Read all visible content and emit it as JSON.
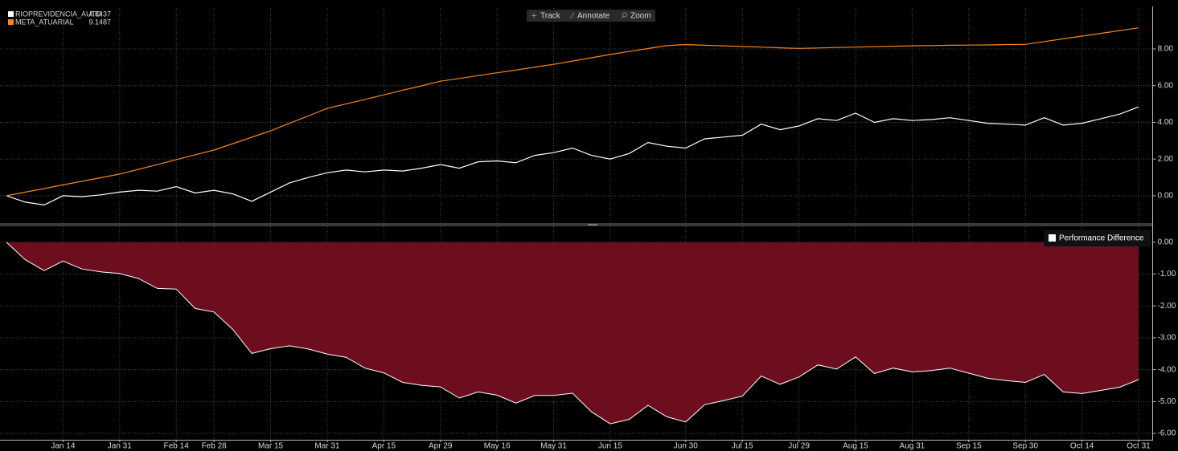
{
  "toolbar": [
    "Track",
    "Annotate",
    "Zoom"
  ],
  "chart_data": [
    {
      "type": "line",
      "ylim": [
        -1.49,
        10.23
      ],
      "yticks": [
        {
          "value": 0,
          "label": "0.00"
        },
        {
          "value": 2,
          "label": "2.00"
        },
        {
          "value": 4,
          "label": "4.00"
        },
        {
          "value": 6,
          "label": "6.00"
        },
        {
          "value": 8,
          "label": "8.00"
        }
      ],
      "grid": true,
      "legend": "top-left",
      "series": [
        {
          "name": "RIOPREVIDENCIA_AUTO",
          "color": "#ffffff",
          "values": [
            0,
            -0.35,
            -0.5,
            0.0,
            -0.05,
            0.05,
            0.2,
            0.3,
            0.25,
            0.5,
            0.15,
            0.3,
            0.1,
            -0.3,
            0.2,
            0.7,
            1.0,
            1.25,
            1.4,
            1.3,
            1.4,
            1.35,
            1.5,
            1.7,
            1.5,
            1.85,
            1.9,
            1.8,
            2.2,
            2.35,
            2.6,
            2.2,
            2.0,
            2.3,
            2.9,
            2.7,
            2.6,
            3.1,
            3.2,
            3.3,
            3.9,
            3.6,
            3.8,
            4.2,
            4.1,
            4.5,
            4.0,
            4.2,
            4.1,
            4.15,
            4.25,
            4.1,
            3.95,
            3.9,
            3.85,
            4.25,
            3.85,
            3.95,
            4.2,
            4.45,
            4.8437
          ]
        },
        {
          "name": "META_ATUARIAL",
          "color": "#f7861c",
          "values": [
            0,
            0.2,
            0.39,
            0.59,
            0.79,
            0.98,
            1.18,
            1.44,
            1.7,
            1.97,
            2.23,
            2.49,
            2.84,
            3.19,
            3.54,
            3.95,
            4.35,
            4.76,
            5.01,
            5.25,
            5.5,
            5.75,
            5.99,
            6.24,
            6.39,
            6.55,
            6.7,
            6.85,
            7.01,
            7.16,
            7.34,
            7.52,
            7.7,
            7.86,
            8.02,
            8.18,
            8.24,
            8.2,
            8.17,
            8.13,
            8.1,
            8.06,
            8.03,
            8.05,
            8.08,
            8.1,
            8.12,
            8.15,
            8.17,
            8.18,
            8.2,
            8.21,
            8.22,
            8.24,
            8.25,
            8.4,
            8.55,
            8.7,
            8.85,
            9.0,
            9.1487
          ]
        }
      ]
    },
    {
      "type": "area",
      "categories": [
        null,
        null,
        null,
        "Jan 14",
        null,
        null,
        "Jan 31",
        null,
        null,
        "Feb 14",
        null,
        "Feb 28",
        null,
        null,
        "Mar 15",
        null,
        null,
        "Mar 31",
        null,
        null,
        "Apr 15",
        null,
        null,
        "Apr 29",
        null,
        null,
        "May 16",
        null,
        null,
        "May 31",
        null,
        null,
        "Jun 15",
        null,
        null,
        null,
        "Jun 30",
        null,
        null,
        "Jul 15",
        null,
        null,
        "Jul 29",
        null,
        null,
        "Aug 15",
        null,
        null,
        "Aug 31",
        null,
        null,
        "Sep 15",
        null,
        null,
        "Sep 30",
        null,
        null,
        "Oct 14",
        null,
        null,
        "Oct 31"
      ],
      "ylim": [
        -6.2,
        0.5
      ],
      "yticks": [
        {
          "value": 0,
          "label": "0.00"
        },
        {
          "value": -1,
          "label": "-1.00"
        },
        {
          "value": -2,
          "label": "-2.00"
        },
        {
          "value": -3,
          "label": "-3.00"
        },
        {
          "value": -4,
          "label": "-4.00"
        },
        {
          "value": -5,
          "label": "-5.00"
        },
        {
          "value": -6,
          "label": "-6.00"
        }
      ],
      "grid": true,
      "legend": "top-right",
      "series": [
        {
          "name": "Performance Difference",
          "color": "#6d0e1f",
          "values": [
            0,
            -0.55,
            -0.89,
            -0.59,
            -0.84,
            -0.93,
            -0.98,
            -1.14,
            -1.45,
            -1.47,
            -2.08,
            -2.19,
            -2.74,
            -3.49,
            -3.34,
            -3.25,
            -3.35,
            -3.51,
            -3.61,
            -3.95,
            -4.1,
            -4.4,
            -4.49,
            -4.54,
            -4.89,
            -4.7,
            -4.8,
            -5.05,
            -4.81,
            -4.81,
            -4.74,
            -5.32,
            -5.7,
            -5.56,
            -5.12,
            -5.48,
            -5.64,
            -5.1,
            -4.97,
            -4.83,
            -4.2,
            -4.46,
            -4.23,
            -3.85,
            -3.98,
            -3.6,
            -4.12,
            -3.95,
            -4.07,
            -4.03,
            -3.95,
            -4.11,
            -4.27,
            -4.34,
            -4.4,
            -4.15,
            -4.7,
            -4.75,
            -4.65,
            -4.55,
            -4.31
          ]
        }
      ]
    }
  ]
}
